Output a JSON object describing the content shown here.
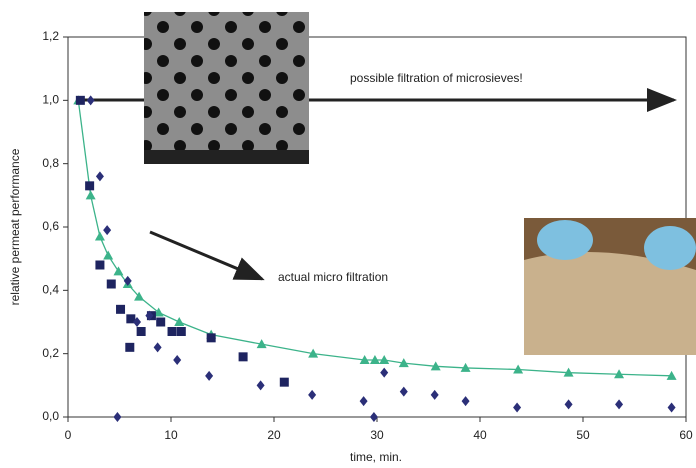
{
  "chart_data": {
    "type": "scatter",
    "x_label": "time, min.",
    "y_label": "relative permeat performance",
    "annotations": [
      "possible filtration of microsieves!",
      "actual micro filtration"
    ],
    "xlim": [
      0,
      60
    ],
    "xticks": [
      0,
      10,
      20,
      30,
      40,
      50,
      60
    ],
    "ylim": [
      0,
      1.2
    ],
    "yticks": [
      {
        "value": 0,
        "label": "0,0"
      },
      {
        "value": 0.2,
        "label": "0,2"
      },
      {
        "value": 0.4,
        "label": "0,4"
      },
      {
        "value": 0.6,
        "label": "0,6"
      },
      {
        "value": 0.8,
        "label": "0,8"
      },
      {
        "value": 1.0,
        "label": "1,0"
      },
      {
        "value": 1.2,
        "label": "1,2"
      }
    ],
    "series": [
      {
        "marker": "triangle",
        "color": "#3cb38a",
        "line": true,
        "x": [
          1,
          2.2,
          3.1,
          3.9,
          4.9,
          5.8,
          6.9,
          8.8,
          10.8,
          13.9,
          18.8,
          23.8,
          28.8,
          29.8,
          30.7,
          32.6,
          35.7,
          38.6,
          43.7,
          48.6,
          53.5,
          58.6
        ],
        "values": [
          1.0,
          0.7,
          0.57,
          0.51,
          0.46,
          0.42,
          0.38,
          0.33,
          0.3,
          0.26,
          0.23,
          0.2,
          0.18,
          0.18,
          0.18,
          0.17,
          0.16,
          0.155,
          0.15,
          0.14,
          0.135,
          0.13
        ]
      },
      {
        "marker": "square",
        "color": "#1e2460",
        "x": [
          1.2,
          2.1,
          3.1,
          4.2,
          5.1,
          6.1,
          6.0,
          7.1,
          8.1,
          9.0,
          10.1,
          11.0,
          13.9,
          17.0,
          21.0
        ],
        "values": [
          1.0,
          0.73,
          0.48,
          0.42,
          0.34,
          0.31,
          0.22,
          0.27,
          0.32,
          0.3,
          0.27,
          0.27,
          0.25,
          0.19,
          0.11
        ]
      },
      {
        "marker": "diamond",
        "color": "#2b2f78",
        "x": [
          2.2,
          3.1,
          3.8,
          4.8,
          5.8,
          6.7,
          7.9,
          8.7,
          10.6,
          13.7,
          18.7,
          23.7,
          28.7,
          29.7,
          30.7,
          32.6,
          35.6,
          38.6,
          43.6,
          48.6,
          53.5,
          58.6
        ],
        "values": [
          1.0,
          0.76,
          0.59,
          0,
          0.43,
          0.3,
          0.32,
          0.22,
          0.18,
          0.13,
          0.1,
          0.07,
          0.05,
          0,
          0.14,
          0.08,
          0.07,
          0.05,
          0.03,
          0.04,
          0.04,
          0.03
        ]
      }
    ]
  }
}
